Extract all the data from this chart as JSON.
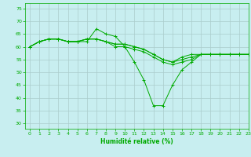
{
  "xlabel": "Humidité relative (%)",
  "ylim": [
    28,
    77
  ],
  "xlim": [
    -0.5,
    23
  ],
  "yticks": [
    30,
    35,
    40,
    45,
    50,
    55,
    60,
    65,
    70,
    75
  ],
  "xticks": [
    0,
    1,
    2,
    3,
    4,
    5,
    6,
    7,
    8,
    9,
    10,
    11,
    12,
    13,
    14,
    15,
    16,
    17,
    18,
    19,
    20,
    21,
    22,
    23
  ],
  "background_color": "#c8eef0",
  "grid_color": "#aacccc",
  "line_color": "#00aa00",
  "curves": [
    [
      60,
      62,
      63,
      63,
      62,
      62,
      62,
      67,
      65,
      64,
      60,
      54,
      47,
      37,
      37,
      45,
      51,
      54,
      57,
      57,
      57,
      57,
      57,
      57
    ],
    [
      60,
      62,
      63,
      63,
      62,
      62,
      63,
      63,
      62,
      60,
      60,
      59,
      58,
      56,
      54,
      53,
      54,
      55,
      57,
      57,
      57,
      57,
      57,
      57
    ],
    [
      60,
      62,
      63,
      63,
      62,
      62,
      63,
      63,
      62,
      61,
      61,
      60,
      59,
      57,
      55,
      54,
      55,
      56,
      57,
      57,
      57,
      57,
      57,
      57
    ],
    [
      60,
      62,
      63,
      63,
      62,
      62,
      63,
      63,
      62,
      61,
      61,
      60,
      59,
      57,
      55,
      54,
      56,
      57,
      57,
      57,
      57,
      57,
      57,
      57
    ]
  ]
}
